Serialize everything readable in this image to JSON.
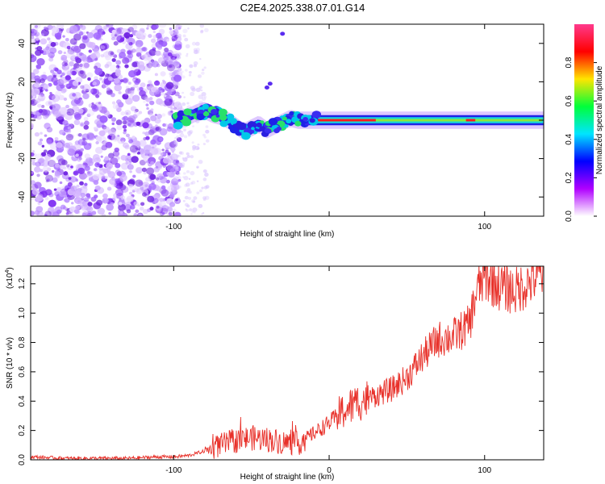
{
  "title": "C2E4.2025.338.07.01.G14",
  "chart_data": [
    {
      "type": "heatmap",
      "name": "spectrogram",
      "xlabel": "Height of straight line (km)",
      "ylabel": "Frequency (Hz)",
      "xlim": [
        -192,
        138
      ],
      "ylim": [
        -50,
        50
      ],
      "xticks": [
        -100,
        0,
        100
      ],
      "xtick_labels": [
        "-100",
        "",
        "100"
      ],
      "yticks": [
        -40,
        -20,
        0,
        20,
        40
      ],
      "ytick_labels": [
        "-40",
        "-20",
        "0",
        "20",
        "40"
      ],
      "grid": false,
      "ridge": {
        "x": [
          -100,
          -95,
          -90,
          -85,
          -80,
          -75,
          -70,
          -65,
          -60,
          -55,
          -50,
          -45,
          -40,
          -35,
          -30,
          -25,
          -20,
          -15,
          -10,
          -5,
          0,
          10,
          20,
          40,
          60,
          80,
          90,
          100,
          120,
          138
        ],
        "freq": [
          -1,
          1,
          2,
          4,
          5,
          3,
          2,
          0,
          -3,
          -6,
          -4,
          -2,
          -5,
          -3,
          -1,
          1,
          0,
          0,
          0,
          0,
          0,
          0,
          0,
          0,
          0,
          0,
          0,
          0,
          0,
          0
        ]
      },
      "colorbar": {
        "label": "Normalized spectral amplitude",
        "range": [
          0,
          1
        ],
        "ticks": [
          0.0,
          0.2,
          0.4,
          0.6,
          0.8
        ],
        "tick_labels": [
          "0.0",
          "0.2",
          "0.4",
          "0.6",
          "0.8"
        ],
        "colors": [
          "#ffffff",
          "#b000ff",
          "#0000ff",
          "#00e5ff",
          "#00ff3a",
          "#ffe500",
          "#ff0000",
          "#ff3a8c"
        ]
      }
    },
    {
      "type": "line",
      "name": "snr",
      "xlabel": "Height of straight line (km)",
      "ylabel": "SNR (10 * v/v)",
      "scale_label": "(x10",
      "scale_exp": "4",
      "scale_close": ")",
      "xlim": [
        -192,
        138
      ],
      "ylim": [
        0,
        1.32
      ],
      "xticks": [
        -100,
        0,
        100
      ],
      "xtick_labels": [
        "-100",
        "0",
        "100"
      ],
      "yticks": [
        0.0,
        0.2,
        0.4,
        0.6,
        0.8,
        1.0,
        1.2
      ],
      "ytick_labels": [
        "0.0",
        "0.2",
        "0.4",
        "0.6",
        "0.8",
        "1.0",
        "1.2"
      ],
      "line_color": "#e8312a",
      "x": [
        -192,
        -170,
        -150,
        -130,
        -110,
        -100,
        -90,
        -80,
        -70,
        -60,
        -50,
        -40,
        -30,
        -20,
        -10,
        0,
        10,
        20,
        30,
        40,
        50,
        60,
        70,
        80,
        90,
        95,
        100,
        110,
        120,
        130,
        138
      ],
      "y": [
        0.02,
        0.01,
        0.01,
        0.01,
        0.02,
        0.02,
        0.03,
        0.06,
        0.1,
        0.13,
        0.15,
        0.14,
        0.12,
        0.11,
        0.18,
        0.25,
        0.34,
        0.4,
        0.44,
        0.48,
        0.56,
        0.7,
        0.82,
        0.84,
        0.92,
        1.15,
        1.25,
        1.18,
        1.15,
        1.22,
        1.28
      ]
    }
  ]
}
